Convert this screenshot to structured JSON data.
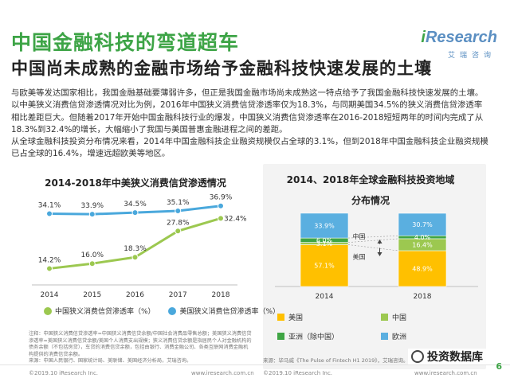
{
  "header": {
    "title": "中国金融科技的弯道超车",
    "subtitle": "中国尚未成熟的金融市场给予金融科技快速发展的土壤"
  },
  "logo": {
    "i": "i",
    "main": "Research",
    "sub": "艾瑞咨询"
  },
  "body_paragraphs": [
    "与欧美等发达国家相比，我国金融基础要薄弱许多，但正是我国金融市场尚未成熟这一特点给予了我国金融科技快速发展的土壤。以中美狭义消费信贷渗透情况对比为例，2016年中国狭义消费信贷渗透率仅为18.3%，与同期美国34.5%的狭义消费信贷渗透率相比差距巨大。但随着2017年开始中国金融科技行业的爆发，中国狭义消费信贷渗透率在2016-2018短短两年的时间内完成了从18.3%到32.4%的增长，大幅缩小了我国与美国普惠金融进程之间的差距。",
    "从全球金融科技投资分布情况来看，2014年中国金融科技企业融资规模仅占全球的3.1%，但到2018年中国金融科技企业融资规模已占全球的16.4%，增速远超欧美等地区。"
  ],
  "chart_data": [
    {
      "type": "line",
      "title": "2014-2018年中美狭义消费信贷渗透情况",
      "x": [
        "2014",
        "2015",
        "2016",
        "2017",
        "2018"
      ],
      "series": [
        {
          "name": "中国狭义消费信贷渗透率（%）",
          "values": [
            14.2,
            16.0,
            18.3,
            27.8,
            32.4
          ],
          "labels": [
            "14.2%",
            "16.0%",
            "18.3%",
            "27.8%",
            "32.4%"
          ],
          "color": "#9cc850"
        },
        {
          "name": "美国狭义消费信贷渗透率（%）",
          "values": [
            34.1,
            33.9,
            34.5,
            35.1,
            36.9
          ],
          "labels": [
            "34.1%",
            "33.9%",
            "34.5%",
            "35.1%",
            "36.9%"
          ],
          "color": "#4aa8dc"
        }
      ],
      "ylim": [
        10,
        40
      ],
      "grid": false
    },
    {
      "type": "bar",
      "stacked": true,
      "title_lines": [
        "2014、2018年全球金融科技投资地域",
        "分布情况"
      ],
      "categories": [
        "2014",
        "2018"
      ],
      "series": [
        {
          "name": "美国",
          "values": [
            57.1,
            48.9
          ],
          "labels": [
            "57.1%",
            "48.9%"
          ],
          "color": "#ffc000"
        },
        {
          "name": "中国",
          "values": [
            3.1,
            16.4
          ],
          "labels": [
            "3.1%",
            "16.4%"
          ],
          "color": "#9cc850"
        },
        {
          "name": "亚洲（除中国）",
          "values": [
            6.0,
            4.0
          ],
          "labels": [
            "6.0%",
            "4.0%"
          ],
          "color": "#3fa544"
        },
        {
          "name": "欧洲",
          "values": [
            33.9,
            30.7
          ],
          "labels": [
            "33.9%",
            "30.7%"
          ],
          "color": "#5aafe0"
        }
      ],
      "annotations": [
        "中国",
        "美国"
      ],
      "ylim": [
        0,
        100
      ]
    }
  ],
  "note": "注释：中国狭义消费信贷渗透率=中国狭义消费信贷余额/中国社会消费品零售总额；美国狭义消费信贷渗透率=美国狭义消费信贷余额/美国个人消费支出规模；狭义消费信贷余额是指居民个人对金融机构的债务余额（不包括房贷），车贷的消费信贷余额，包括由银行、消费金融公司、各类互联网消费金融机构提供的消费信贷余额。",
  "source1": "来源：中国人民银行、国家统计局、美联储、美国经济分析局，艾瑞咨询。",
  "source2": "来源：毕马威《The Pulse of Fintech H1 2019》，艾瑞咨询。",
  "footer": {
    "left": "©2019.10 iResearch Inc.",
    "mid": "www.iresearch.com.cn",
    "left2": "©2019.10 iResearch Inc.",
    "right": "www.iresearch.com.cn"
  },
  "page_number": "6",
  "watermark": "投资数据库"
}
